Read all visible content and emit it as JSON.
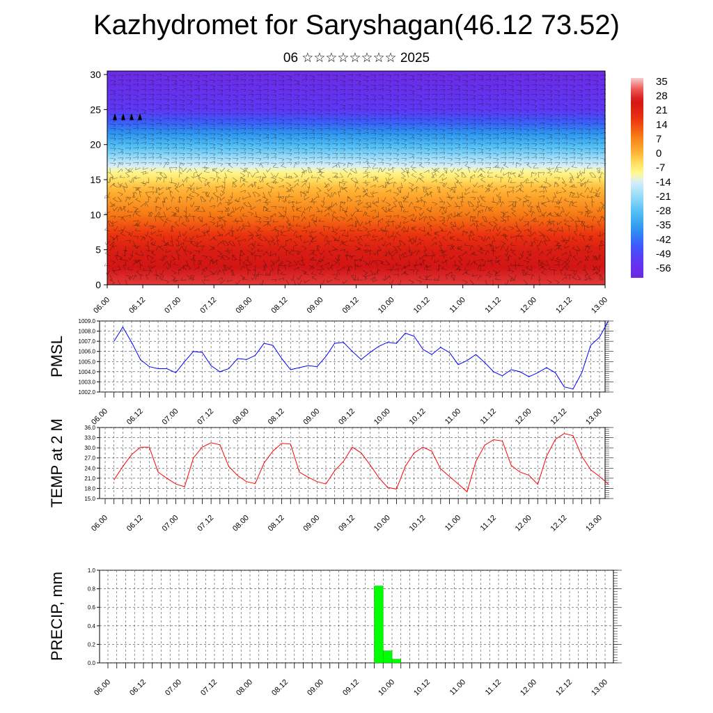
{
  "title": "Kazhydromet for Saryshagan(46.12 73.52)",
  "subtitle": "06 ☆☆☆☆☆☆☆☆ 2025",
  "time_labels": [
    "06.00",
    "06.12",
    "07.00",
    "07.12",
    "08.00",
    "08.12",
    "09.00",
    "09.12",
    "10.00",
    "10.12",
    "11.00",
    "11.12",
    "12.00",
    "12.12",
    "13.00"
  ],
  "chart_data": [
    {
      "type": "heatmap",
      "description_of_variable": "temperature cross-section with wind barbs",
      "xlabel": "",
      "ylabel": "",
      "y_ticks": [
        0,
        5,
        10,
        15,
        20,
        25,
        30
      ],
      "ylim": [
        0,
        30.5
      ],
      "x": [
        "06.00",
        "06.12",
        "07.00",
        "07.12",
        "08.00",
        "08.12",
        "09.00",
        "09.12",
        "10.00",
        "10.12",
        "11.00",
        "11.12",
        "12.00",
        "12.12",
        "13.00"
      ],
      "colorbar_labels": [
        "35",
        "28",
        "21",
        "14",
        "7",
        "0",
        "-7",
        "-14",
        "-21",
        "-28",
        "-35",
        "-42",
        "-49",
        "-56"
      ],
      "colorbar_range": [
        -60,
        38
      ],
      "legend_position": "right",
      "temperature_profile": [
        {
          "height": 0,
          "temp": 30
        },
        {
          "height": 5,
          "temp": 24
        },
        {
          "height": 10,
          "temp": 10
        },
        {
          "height": 14,
          "temp": 0
        },
        {
          "height": 16,
          "temp": -8
        },
        {
          "height": 19,
          "temp": -24
        },
        {
          "height": 22,
          "temp": -38
        },
        {
          "height": 25,
          "temp": -52
        },
        {
          "height": 30,
          "temp": -58
        }
      ]
    },
    {
      "type": "line",
      "ylabel": "PMSL",
      "ylim": [
        1002.0,
        1009.0
      ],
      "y_ticks": [
        "1002.0",
        "1003.0",
        "1004.0",
        "1005.0",
        "1006.0",
        "1007.0",
        "1008.0",
        "1009.0"
      ],
      "series": [
        {
          "color": "#0000ff",
          "values": [
            1007.0,
            1008.4,
            1006.9,
            1005.2,
            1004.5,
            1004.3,
            1004.3,
            1003.9,
            1005.0,
            1006.0,
            1005.9,
            1004.6,
            1004.0,
            1004.3,
            1005.3,
            1005.2,
            1005.6,
            1006.8,
            1006.6,
            1005.3,
            1004.2,
            1004.4,
            1004.6,
            1004.5,
            1005.5,
            1006.8,
            1006.9,
            1006.0,
            1005.2,
            1005.9,
            1006.5,
            1006.9,
            1006.8,
            1007.8,
            1007.5,
            1006.2,
            1005.7,
            1006.4,
            1005.9,
            1004.7,
            1005.1,
            1005.7,
            1004.9,
            1004.0,
            1003.6,
            1004.2,
            1004.0,
            1003.5,
            1003.9,
            1004.4,
            1003.9,
            1002.5,
            1002.3,
            1003.9,
            1006.6,
            1007.4,
            1009.0
          ]
        }
      ]
    },
    {
      "type": "line",
      "ylabel": "TEMP at 2 M",
      "ylim": [
        15.0,
        36.0
      ],
      "y_ticks": [
        "15.0",
        "18.0",
        "21.0",
        "24.0",
        "27.0",
        "30.0",
        "33.0",
        "36.0"
      ],
      "series": [
        {
          "color": "#ff0000",
          "values": [
            20.5,
            24.5,
            28.0,
            30.2,
            30.2,
            22.8,
            21.0,
            19.3,
            18.5,
            27.0,
            30.2,
            31.5,
            30.9,
            24.5,
            21.8,
            20.0,
            19.4,
            25.5,
            29.0,
            31.3,
            31.1,
            22.8,
            21.3,
            20.0,
            19.3,
            23.2,
            26.0,
            30.2,
            28.5,
            25.0,
            21.2,
            18.3,
            17.8,
            24.5,
            28.5,
            30.2,
            29.0,
            23.8,
            21.5,
            19.3,
            17.0,
            26.0,
            30.8,
            32.4,
            32.0,
            24.8,
            22.8,
            21.9,
            19.2,
            27.5,
            32.5,
            34.2,
            33.6,
            27.5,
            23.5,
            21.5,
            19.3
          ]
        }
      ]
    },
    {
      "type": "bar",
      "ylabel": "PRECIP, mm",
      "ylim": [
        0.0,
        1.0
      ],
      "y_ticks": [
        "0.0",
        "0.2",
        "0.4",
        "0.6",
        "0.8",
        "1.0"
      ],
      "color": "#00ff00",
      "x_start_steps": [
        30,
        31,
        32
      ],
      "values": [
        0.83,
        0.13,
        0.04
      ]
    }
  ]
}
